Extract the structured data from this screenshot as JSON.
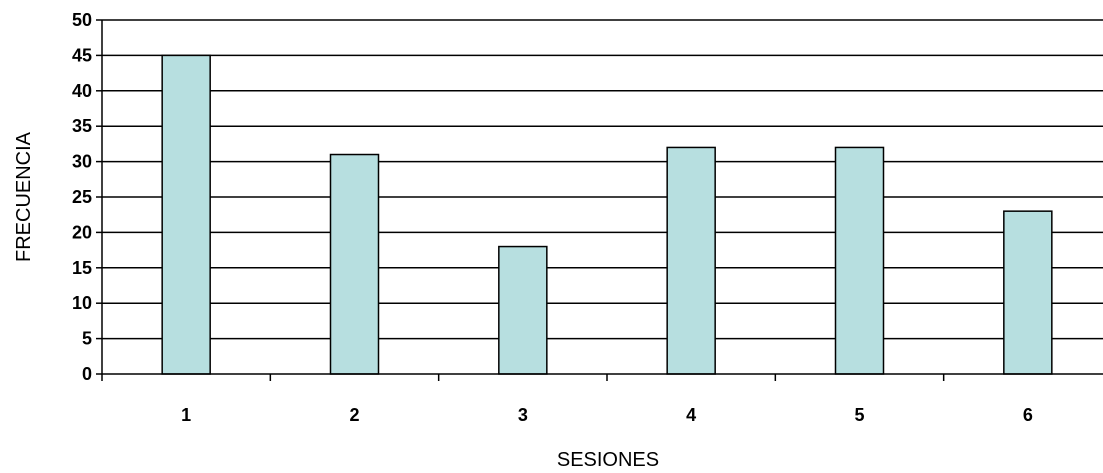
{
  "chart_data": {
    "type": "bar",
    "categories": [
      "1",
      "2",
      "3",
      "4",
      "5",
      "6"
    ],
    "values": [
      45,
      31,
      18,
      32,
      32,
      23
    ],
    "xlabel": "SESIONES",
    "ylabel": "FRECUENCIA",
    "ylim": [
      0,
      50
    ],
    "yticks": [
      0,
      5,
      10,
      15,
      20,
      25,
      30,
      35,
      40,
      45,
      50
    ],
    "grid": true,
    "bar_color": "#b7dfe0",
    "bar_edge_color": "#000000"
  }
}
